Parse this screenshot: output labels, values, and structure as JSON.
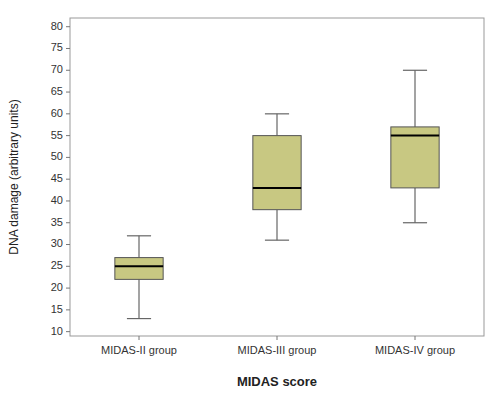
{
  "chart_data": {
    "type": "box",
    "categories": [
      "MIDAS-II group",
      "MIDAS-III group",
      "MIDAS-IV group"
    ],
    "boxes": [
      {
        "whislo": 13,
        "q1": 22,
        "med": 25,
        "q3": 27,
        "whishi": 32
      },
      {
        "whislo": 31,
        "q1": 38,
        "med": 43,
        "q3": 55,
        "whishi": 60
      },
      {
        "whislo": 35,
        "q1": 43,
        "med": 55,
        "q3": 57,
        "whishi": 70
      }
    ],
    "ylim": [
      9,
      82
    ],
    "yticks": [
      10,
      15,
      20,
      25,
      30,
      35,
      40,
      45,
      50,
      55,
      60,
      65,
      70,
      75,
      80
    ],
    "ylabel": "DNA damage (arbitrary units)",
    "xlabel": "MIDAS score",
    "color": "#c8c882",
    "grid": false
  }
}
